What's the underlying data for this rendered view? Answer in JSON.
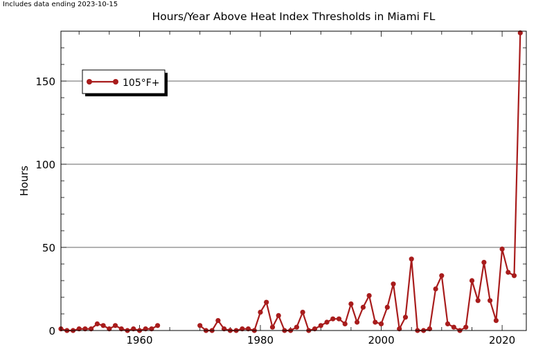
{
  "header": {
    "note": "Includes data ending 2023-10-15"
  },
  "chart_data": {
    "type": "line",
    "title": "Hours/Year Above Heat Index Thresholds in Miami FL",
    "xlabel": "",
    "ylabel": "Hours",
    "xlim": [
      1947,
      2024
    ],
    "ylim": [
      0,
      180
    ],
    "x_ticks": [
      1960,
      1980,
      2000,
      2020
    ],
    "y_ticks": [
      0,
      50,
      100,
      150
    ],
    "grid": "horizontal",
    "legend": "upper-left",
    "series": [
      {
        "name": "105°F+",
        "color": "#a81c1c",
        "x": [
          1947,
          1948,
          1949,
          1950,
          1951,
          1952,
          1953,
          1954,
          1955,
          1956,
          1957,
          1958,
          1959,
          1960,
          1961,
          1962,
          1963,
          1964,
          null,
          1970,
          1971,
          1972,
          1973,
          1974,
          1975,
          1976,
          1977,
          1978,
          1979,
          1980,
          1981,
          1982,
          1983,
          1984,
          1985,
          1986,
          1987,
          1988,
          1989,
          1990,
          1991,
          1992,
          1993,
          1994,
          1995,
          1996,
          1997,
          1998,
          1999,
          2000,
          2001,
          2002,
          2003,
          2004,
          2005,
          2006,
          2007,
          2008,
          2009,
          2010,
          2011,
          2012,
          2013,
          2014,
          2015,
          2016,
          2017,
          2018,
          2019,
          2020,
          2021,
          2022,
          2023
        ],
        "y": [
          1,
          0,
          0,
          1,
          1,
          1,
          4,
          3,
          1,
          3,
          1,
          0,
          1,
          0,
          1,
          1,
          3,
          null,
          null,
          3,
          0,
          0,
          6,
          1,
          0,
          0,
          1,
          1,
          0,
          11,
          17,
          2,
          9,
          0,
          0,
          2,
          11,
          0,
          1,
          3,
          5,
          7,
          7,
          4,
          16,
          5,
          14,
          21,
          5,
          4,
          14,
          28,
          1,
          8,
          43,
          0,
          0,
          1,
          25,
          33,
          4,
          2,
          0,
          2,
          30,
          18,
          41,
          18,
          6,
          49,
          35,
          33,
          179
        ]
      }
    ]
  }
}
